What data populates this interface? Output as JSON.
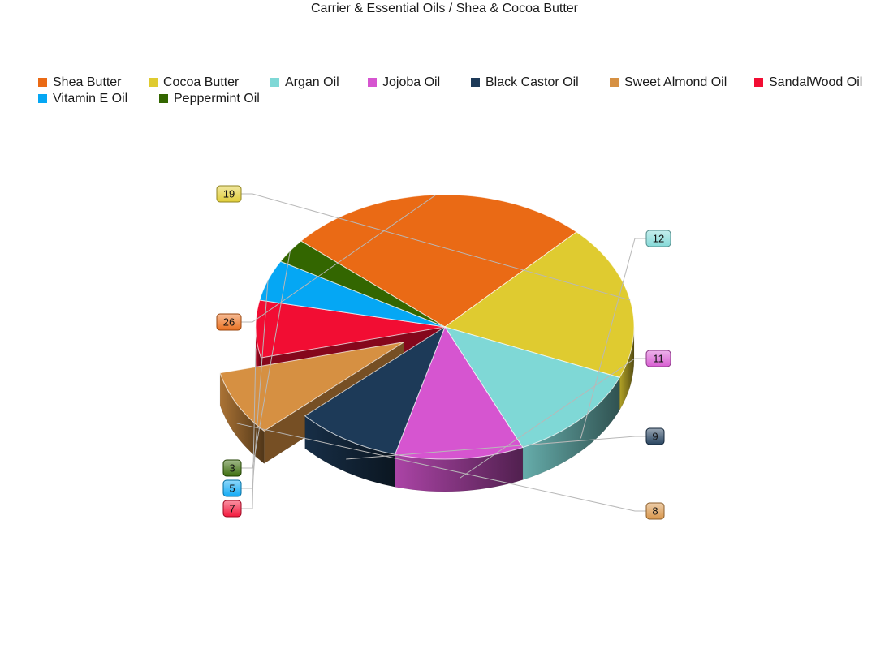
{
  "chart_data": {
    "type": "pie",
    "is_3d": true,
    "title": "Carrier & Essential Oils / Shea & Cocoa Butter",
    "exploded_slice": "Sweet Almond Oil",
    "legend_position": "top",
    "slices": [
      {
        "name": "Shea Butter",
        "value": 26,
        "color": "#EA6A15"
      },
      {
        "name": "Cocoa Butter",
        "value": 19,
        "color": "#DFCB30"
      },
      {
        "name": "Argan Oil",
        "value": 12,
        "color": "#7FD8D6"
      },
      {
        "name": "Jojoba Oil",
        "value": 11,
        "color": "#D655D0"
      },
      {
        "name": "Black Castor Oil",
        "value": 9,
        "color": "#1D3A58"
      },
      {
        "name": "Sweet Almond Oil",
        "value": 8,
        "color": "#D69042"
      },
      {
        "name": "SandalWood Oil",
        "value": 7,
        "color": "#F20D33"
      },
      {
        "name": "Vitamin E Oil",
        "value": 5,
        "color": "#05A7F4"
      },
      {
        "name": "Peppermint Oil",
        "value": 3,
        "color": "#336600"
      }
    ]
  }
}
